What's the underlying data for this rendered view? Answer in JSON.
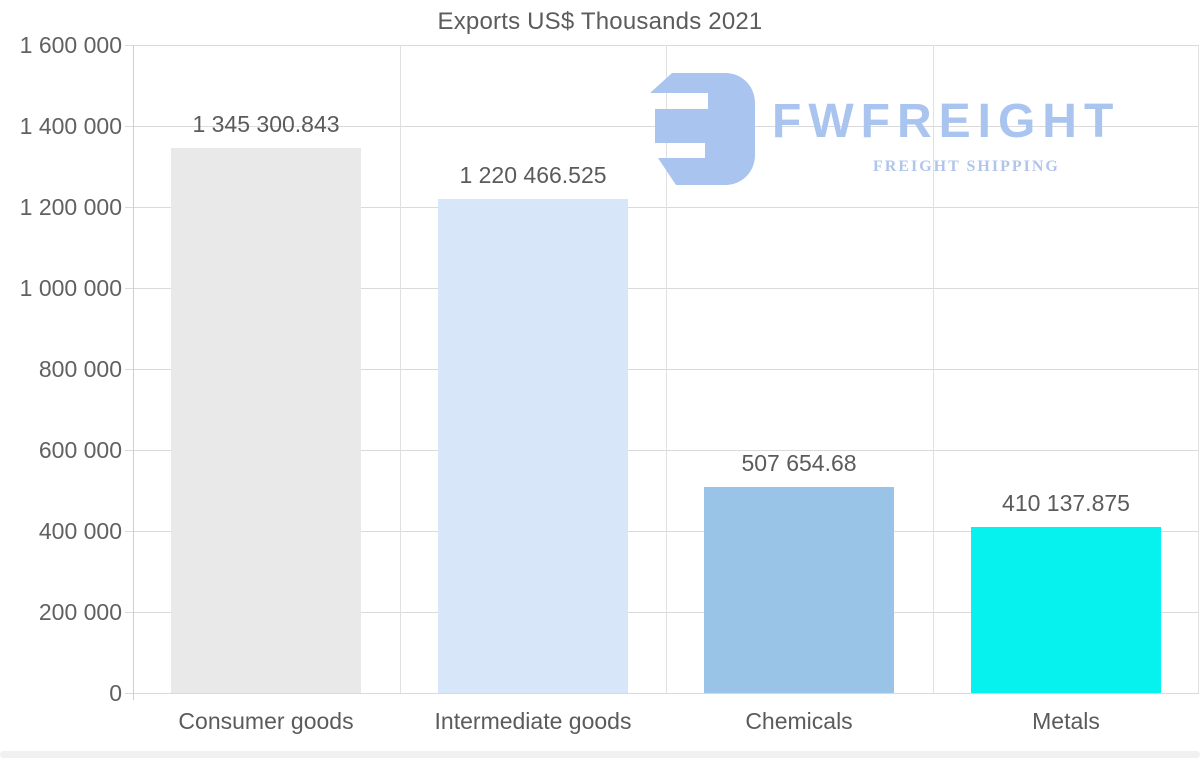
{
  "page": {
    "background": "#ffffff"
  },
  "watermark": {
    "brand": "FWFREIGHT",
    "tagline": "FREIGHT SHIPPING",
    "brand_color": "#a9c4ef",
    "tagline_color": "#b1c5eb",
    "icon": "fwfreight-mark-icon"
  },
  "chart_data": {
    "type": "bar",
    "title": "Exports US$ Thousands 2021",
    "categories": [
      "Consumer goods",
      "Intermediate goods",
      "Chemicals",
      "Metals"
    ],
    "values": [
      1345300.843,
      1220466.525,
      507654.68,
      410137.875
    ],
    "value_labels": [
      "1 345 300.843",
      "1 220 466.525",
      "507 654.68",
      "410 137.875"
    ],
    "bar_colors": [
      "#e9e9e9",
      "#d7e6f8",
      "#9ac3e8",
      "#05f2ef"
    ],
    "xlabel": "",
    "ylabel": "",
    "ylim": [
      0,
      1600000
    ],
    "ytick_step": 200000,
    "ytick_labels": [
      "0",
      "200 000",
      "400 000",
      "600 000",
      "800 000",
      "1 000 000",
      "1 200 000",
      "1 400 000",
      "1 600 000"
    ],
    "grid": "horizontal gridlines at each tick plus vertical column-boundary lines",
    "legend": "none",
    "text_color": "#5b5b5b",
    "grid_color": "#dadada"
  }
}
